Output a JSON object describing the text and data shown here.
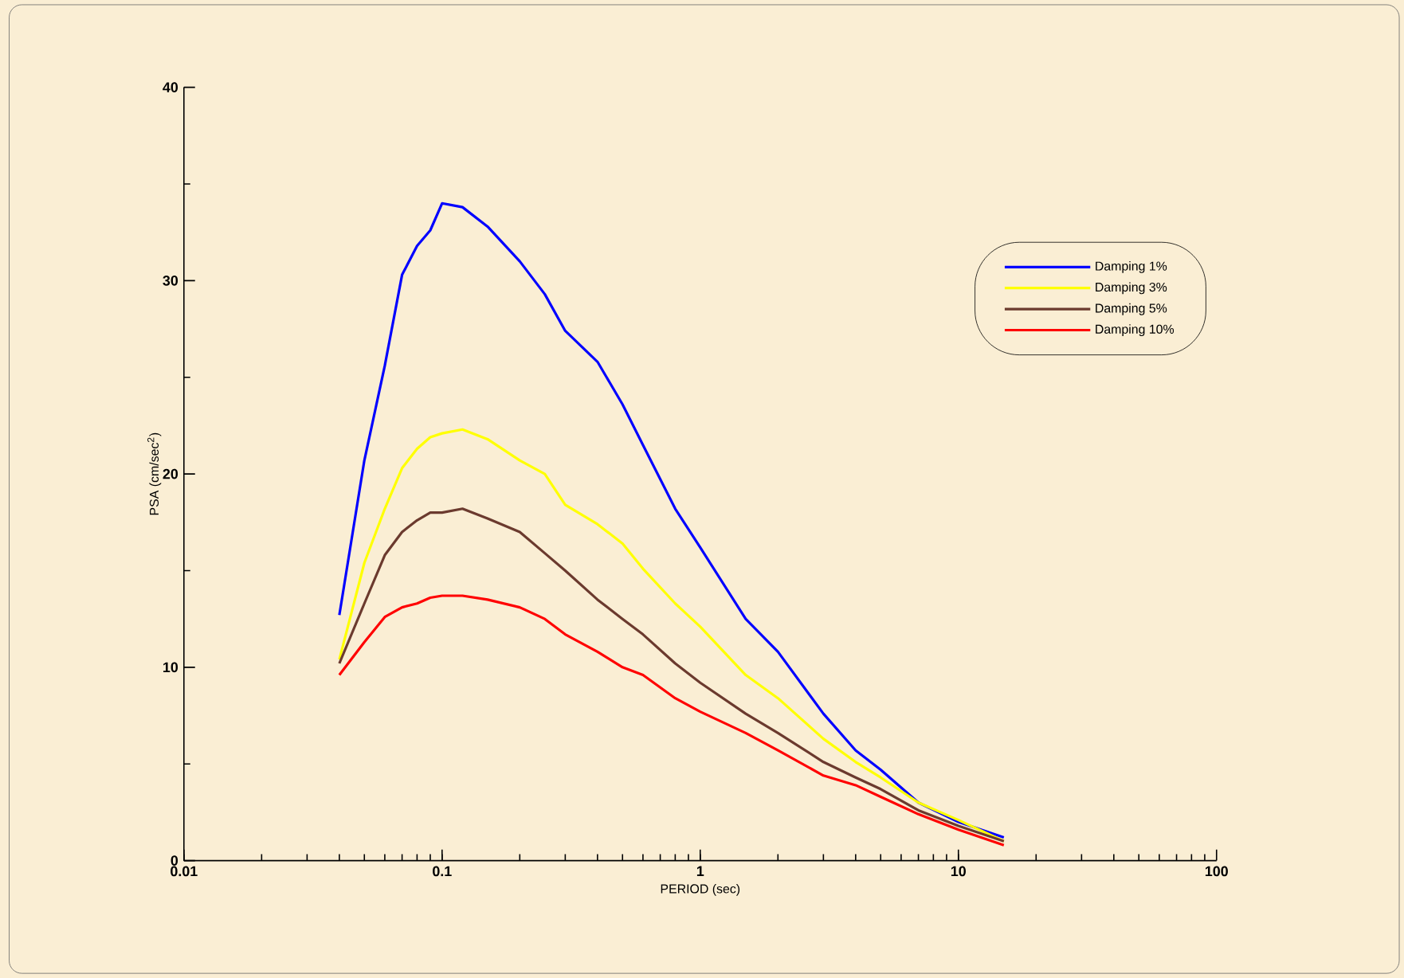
{
  "chart_data": {
    "type": "line",
    "xlabel": "PERIOD (sec)",
    "ylabel": "PSA (cm/sec$^{2}$)",
    "log": "x",
    "x": [
      0.04,
      0.05,
      0.06,
      0.07,
      0.08,
      0.09,
      0.1,
      0.12,
      0.15,
      0.2,
      0.25,
      0.3,
      0.4,
      0.5,
      0.6,
      0.8,
      1,
      1.5,
      2,
      3,
      4,
      5,
      7,
      10,
      15
    ],
    "xlim": [
      0.01,
      100
    ],
    "xticks": [
      0.01,
      0.1,
      1,
      10,
      100
    ],
    "ylim": [
      0,
      40
    ],
    "yticks": [
      0,
      10,
      20,
      30,
      40
    ],
    "legend": "top right",
    "grid": false,
    "marker": "none",
    "line_style": "solid",
    "series": [
      {
        "name": "Damping 1%",
        "color": "#0000ff",
        "values": [
          12.7,
          20.7,
          25.6,
          30.3,
          31.8,
          32.6,
          34.0,
          33.8,
          32.8,
          31.0,
          29.3,
          27.4,
          25.8,
          23.6,
          21.5,
          18.2,
          16.2,
          12.5,
          10.8,
          7.6,
          5.7,
          4.7,
          3.0,
          2.0,
          1.2
        ]
      },
      {
        "name": "Damping 3%",
        "color": "#ffff00",
        "values": [
          10.4,
          15.4,
          18.2,
          20.3,
          21.3,
          21.9,
          22.1,
          22.3,
          21.8,
          20.7,
          20.0,
          18.4,
          17.4,
          16.4,
          15.1,
          13.3,
          12.1,
          9.6,
          8.4,
          6.3,
          5.1,
          4.3,
          3.0,
          2.1,
          1.0
        ]
      },
      {
        "name": "Damping 5%",
        "color": "#6b3a2e",
        "values": [
          10.2,
          13.3,
          15.8,
          17.0,
          17.6,
          18.0,
          18.0,
          18.2,
          17.7,
          17.0,
          15.9,
          15.0,
          13.5,
          12.5,
          11.7,
          10.2,
          9.2,
          7.6,
          6.6,
          5.1,
          4.3,
          3.7,
          2.6,
          1.8,
          1.0
        ]
      },
      {
        "name": "Damping 10%",
        "color": "#ff0000",
        "values": [
          9.6,
          11.3,
          12.6,
          13.1,
          13.3,
          13.6,
          13.7,
          13.7,
          13.5,
          13.1,
          12.5,
          11.7,
          10.8,
          10.0,
          9.6,
          8.4,
          7.7,
          6.6,
          5.7,
          4.4,
          3.9,
          3.3,
          2.4,
          1.6,
          0.8
        ]
      }
    ]
  }
}
